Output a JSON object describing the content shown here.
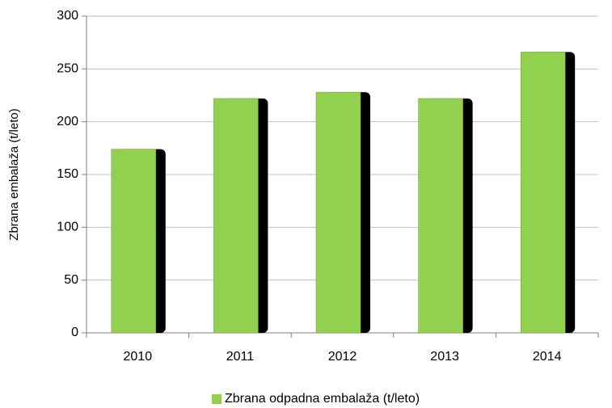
{
  "chart_data": {
    "type": "bar",
    "y_label": "Zbrana embalaža (t/leto)",
    "categories": [
      "2010",
      "2011",
      "2012",
      "2013",
      "2014"
    ],
    "series": [
      {
        "name": "Zbrana odpadna embalaža (t/leto)",
        "color": "#92d050",
        "values": [
          174,
          222,
          228,
          222,
          266
        ]
      }
    ],
    "ylim": [
      0,
      300
    ],
    "yticks": [
      0,
      50,
      100,
      150,
      200,
      250,
      300
    ],
    "grid": true,
    "legend": "bottom"
  }
}
